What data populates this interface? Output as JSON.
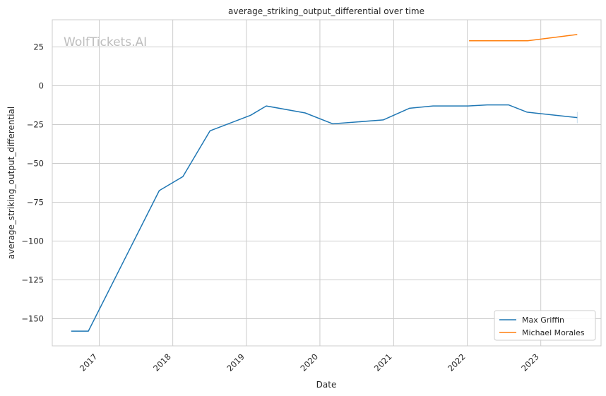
{
  "chart_data": {
    "type": "line",
    "title": "average_striking_output_differential over time",
    "xlabel": "Date",
    "ylabel": "average_striking_output_differential",
    "watermark": "WolfTickets.AI",
    "x_type": "date",
    "xlim": [
      "2016-05-13",
      "2023-10-27"
    ],
    "ylim": [
      -167.5,
      42.5
    ],
    "x_ticks": [
      "2017-01-01",
      "2018-01-01",
      "2019-01-01",
      "2020-01-01",
      "2021-01-01",
      "2022-01-01",
      "2023-01-01"
    ],
    "x_tick_labels": [
      "2017",
      "2018",
      "2019",
      "2020",
      "2021",
      "2022",
      "2023"
    ],
    "y_ticks": [
      25,
      0,
      -25,
      -50,
      -75,
      -100,
      -125,
      -150
    ],
    "y_tick_labels": [
      "25",
      "0",
      "−25",
      "−50",
      "−75",
      "−100",
      "−125",
      "−150"
    ],
    "grid": true,
    "legend_position": "lower-right",
    "series": [
      {
        "name": "Max Griffin",
        "color": "#1f77b4",
        "points": [
          [
            "2016-08-15",
            -158.0
          ],
          [
            "2016-11-08",
            -158.0
          ],
          [
            "2017-10-26",
            -67.5
          ],
          [
            "2018-02-20",
            -58.5
          ],
          [
            "2018-07-05",
            -29.0
          ],
          [
            "2019-01-22",
            -19.0
          ],
          [
            "2019-04-10",
            -13.0
          ],
          [
            "2019-10-20",
            -17.5
          ],
          [
            "2020-03-05",
            -24.5
          ],
          [
            "2020-11-10",
            -22.0
          ],
          [
            "2021-03-20",
            -14.5
          ],
          [
            "2021-07-15",
            -13.0
          ],
          [
            "2022-01-05",
            -13.0
          ],
          [
            "2022-04-10",
            -12.3
          ],
          [
            "2022-07-25",
            -12.3
          ],
          [
            "2022-10-25",
            -17.0
          ],
          [
            "2023-07-01",
            -20.5
          ]
        ]
      },
      {
        "name": "Michael Morales",
        "color": "#ff7f0e",
        "points": [
          [
            "2022-01-10",
            29.0
          ],
          [
            "2022-04-10",
            29.0
          ],
          [
            "2022-07-15",
            29.0
          ],
          [
            "2022-10-28",
            29.0
          ],
          [
            "2023-07-01",
            33.0
          ]
        ]
      }
    ]
  }
}
